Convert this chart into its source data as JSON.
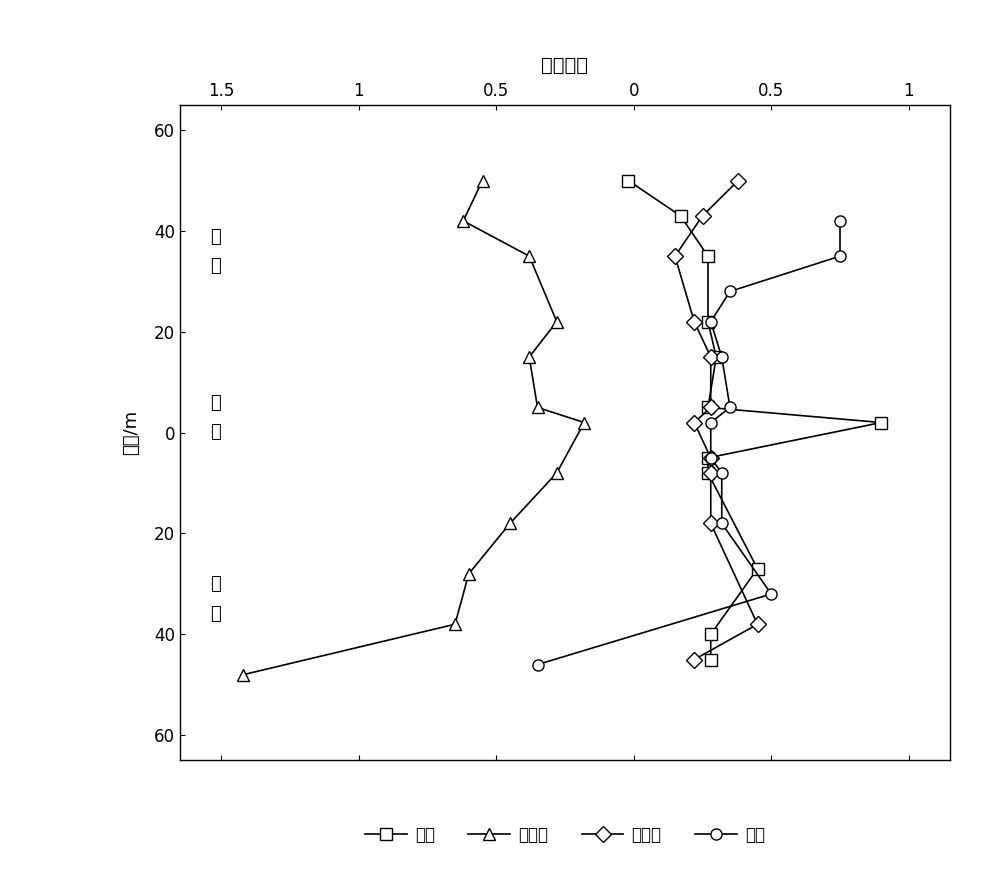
{
  "title": "液性指数",
  "ylabel": "深度/m",
  "background_color": "#ffffff",
  "xlim": [
    -1.65,
    1.15
  ],
  "ylim": [
    -65,
    65
  ],
  "xticks": [
    -1.5,
    -1.0,
    -0.5,
    0.0,
    0.5,
    1.0
  ],
  "xtick_labels": [
    "1.5",
    "1",
    "0.5",
    "0",
    "0.5",
    "1"
  ],
  "yticks": [
    -60,
    -40,
    -20,
    0,
    20,
    40,
    60
  ],
  "ytick_labels": [
    "60",
    "40",
    "20",
    "0",
    "20",
    "40",
    "60"
  ],
  "zone_labels": [
    {
      "text": "滑\n体",
      "y": 36
    },
    {
      "text": "滑\n带",
      "y": 3
    },
    {
      "text": "滑\n床",
      "y": -33
    }
  ],
  "dongfeng_x": [
    -0.02,
    0.17,
    0.27,
    0.27,
    0.3,
    0.27,
    0.9,
    0.27,
    0.27,
    0.45,
    0.28,
    0.28
  ],
  "dongfeng_y": [
    50,
    43,
    35,
    22,
    15,
    5,
    2,
    -5,
    -8,
    -27,
    -40,
    -45
  ],
  "shutangwang_x": [
    -0.55,
    -0.62,
    -0.38,
    -0.28,
    -0.38,
    -0.35,
    -0.18,
    -0.28,
    -0.45,
    -0.6,
    -0.65,
    -1.42
  ],
  "shutangwang_y": [
    50,
    42,
    35,
    22,
    15,
    5,
    2,
    -8,
    -18,
    -28,
    -38,
    -48
  ],
  "xiushidu_x": [
    0.38,
    0.25,
    0.15,
    0.22,
    0.28,
    0.28,
    0.22,
    0.28,
    0.28,
    0.28,
    0.45,
    0.22
  ],
  "xiushidu_y": [
    50,
    43,
    35,
    22,
    15,
    5,
    2,
    -5,
    -8,
    -18,
    -38,
    -45
  ],
  "taiping_x": [
    0.75,
    0.75,
    0.35,
    0.28,
    0.32,
    0.35,
    0.28,
    0.28,
    0.32,
    0.32,
    0.5,
    -0.35
  ],
  "taiping_y": [
    42,
    35,
    28,
    22,
    15,
    5,
    2,
    -5,
    -8,
    -18,
    -32,
    -46
  ],
  "series_names": [
    "东风",
    "舒唐王",
    "修石渡",
    "太平"
  ],
  "markers": [
    "s",
    "^",
    "D",
    "o"
  ],
  "markersize": 8,
  "linewidth": 1.2,
  "title_fontsize": 14,
  "label_fontsize": 13,
  "tick_fontsize": 12,
  "legend_fontsize": 12
}
